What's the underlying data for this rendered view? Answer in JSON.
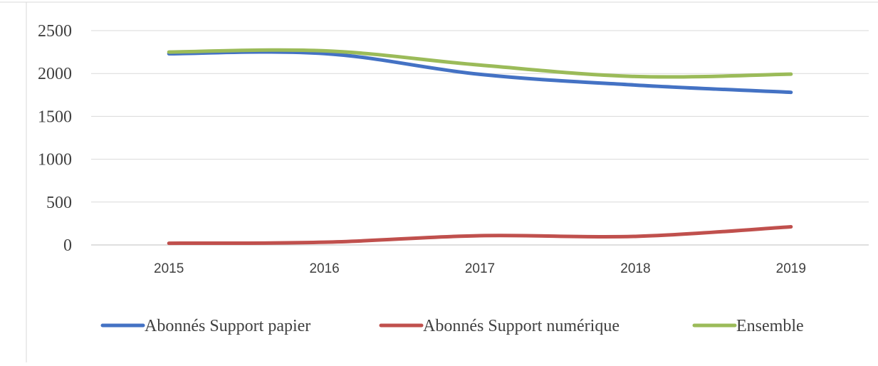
{
  "chart_data": {
    "type": "line",
    "title": "",
    "xlabel": "",
    "ylabel": "",
    "x": [
      "2015",
      "2016",
      "2017",
      "2018",
      "2019"
    ],
    "yticks": [
      "0",
      "500",
      "1000",
      "1500",
      "2000",
      "2500"
    ],
    "ylim": [
      0,
      2500
    ],
    "grid": "horizontal",
    "legend_position": "bottom",
    "series": [
      {
        "name": "Abonnés Support papier",
        "color": "#4472C4",
        "values": [
          2230,
          2232,
          1990,
          1865,
          1780
        ]
      },
      {
        "name": "Abonnés Support numérique",
        "color": "#C0504D",
        "values": [
          20,
          32,
          108,
          100,
          212
        ]
      },
      {
        "name": "Ensemble",
        "color": "#9BBB59",
        "values": [
          2250,
          2264,
          2098,
          1965,
          1992
        ]
      }
    ]
  }
}
